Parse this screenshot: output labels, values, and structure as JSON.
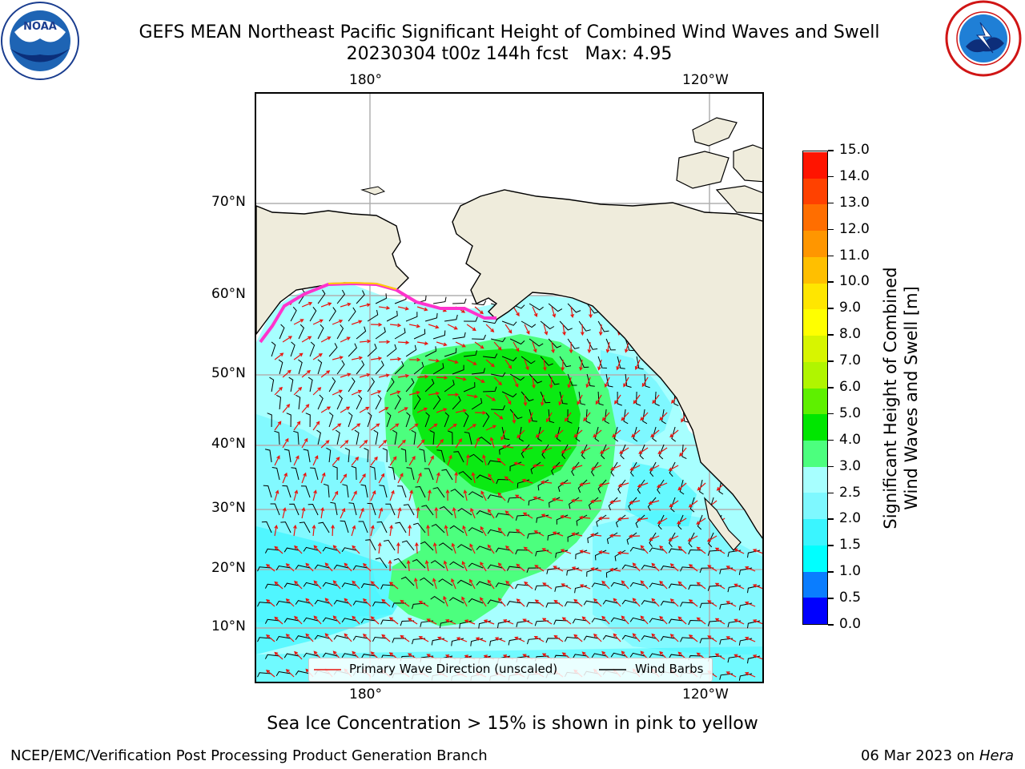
{
  "header": {
    "title_line1": "GEFS MEAN Northeast Pacific Significant Height of Combined Wind Waves and Swell",
    "title_line2": "20230304 t00z 144h fcst   Max: 4.95"
  },
  "logos": {
    "left": "NOAA",
    "right": "NATIONAL WEATHER SERVICE"
  },
  "map": {
    "lon_labels": [
      "180°",
      "120°W"
    ],
    "lat_labels": [
      "70°N",
      "60°N",
      "50°N",
      "40°N",
      "30°N",
      "20°N",
      "10°N"
    ],
    "legend": {
      "wave_label": "Primary Wave Direction (unscaled)",
      "barb_label": "Wind Barbs"
    },
    "colors": {
      "land": "#efecdc",
      "wave_arrow": "#e8150f",
      "barb": "#000000",
      "grid": "#b0b0b0"
    }
  },
  "colorbar": {
    "label": "Significant Height of Combined\nWind Waves and Swell [m]",
    "ticks": [
      "0.0",
      "0.5",
      "1.0",
      "1.5",
      "2.0",
      "2.5",
      "3.0",
      "4.0",
      "5.0",
      "6.0",
      "7.0",
      "8.0",
      "9.0",
      "10.0",
      "11.0",
      "12.0",
      "13.0",
      "14.0",
      "15.0"
    ],
    "colors": [
      "#0000ff",
      "#0a7dff",
      "#00ffff",
      "#3af5ff",
      "#7ef8ff",
      "#a7ffff",
      "#4cff7e",
      "#00e600",
      "#5ef000",
      "#b0f500",
      "#d7f500",
      "#ffff00",
      "#ffe600",
      "#ffbf00",
      "#ff9600",
      "#ff6e00",
      "#ff4100",
      "#ff1400"
    ]
  },
  "footer": {
    "sea_ice_note": "Sea Ice Concentration > 15% is shown in pink to yellow",
    "branch": "NCEP/EMC/Verification Post Processing Product Generation Branch",
    "date": "06 Mar 2023 on",
    "host": "Hera"
  }
}
